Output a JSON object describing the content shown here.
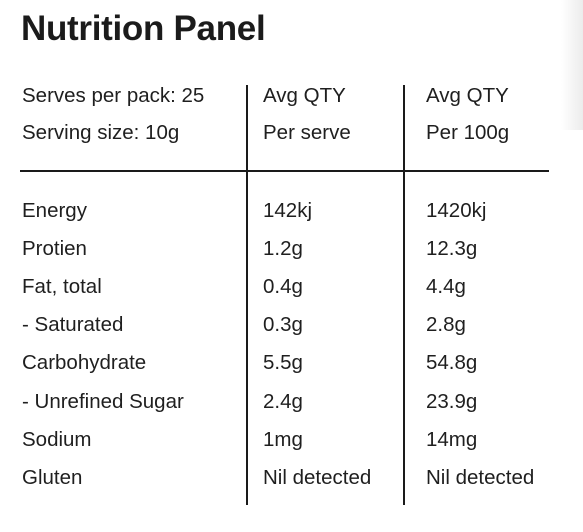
{
  "title": "Nutrition Panel",
  "header": {
    "col1": [
      "Serves per pack: 25",
      "Serving size: 10g"
    ],
    "col2": [
      "Avg QTY",
      "Per serve"
    ],
    "col3": [
      "Avg QTY",
      "Per 100g"
    ]
  },
  "rows": [
    {
      "name": "Energy",
      "per_serve": "142kj",
      "per_100g": "1420kj"
    },
    {
      "name": "Protien",
      "per_serve": "1.2g",
      "per_100g": "12.3g"
    },
    {
      "name": "Fat, total",
      "per_serve": "0.4g",
      "per_100g": "4.4g"
    },
    {
      "name": "- Saturated",
      "per_serve": "0.3g",
      "per_100g": "2.8g"
    },
    {
      "name": "Carbohydrate",
      "per_serve": "5.5g",
      "per_100g": "54.8g"
    },
    {
      "name": "- Unrefined Sugar",
      "per_serve": "2.4g",
      "per_100g": "23.9g"
    },
    {
      "name": "Sodium",
      "per_serve": "1mg",
      "per_100g": "14mg"
    },
    {
      "name": "Gluten",
      "per_serve": "Nil detected",
      "per_100g": "Nil detected"
    }
  ]
}
